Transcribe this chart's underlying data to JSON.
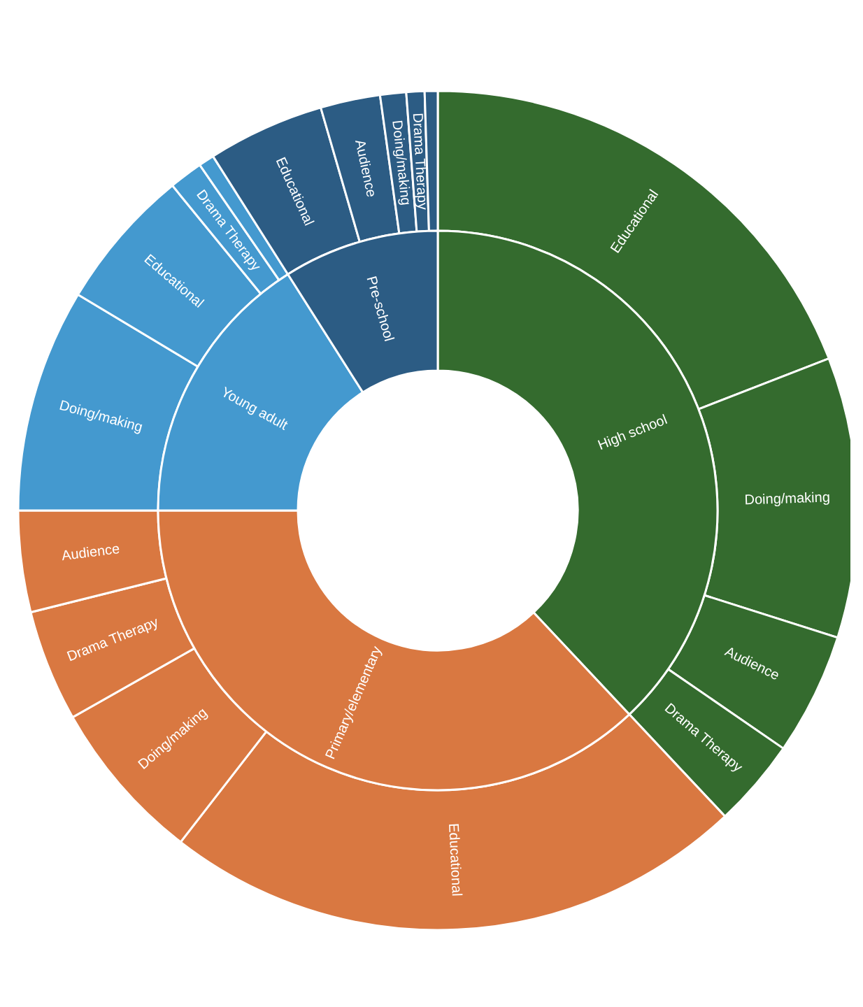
{
  "chart_data": [
    {
      "type": "donut",
      "legend": false,
      "categories": [
        "High school",
        "Primary/elementary",
        "Young adult",
        "Pre-school"
      ],
      "colors": [
        "#346b2e",
        "#d97841",
        "#4499cf",
        "#2c5c84"
      ],
      "values": [
        38,
        37,
        16,
        9
      ]
    },
    {
      "type": "donut",
      "legend": false,
      "categories": [
        "Educational",
        "Doing/making",
        "Audience",
        "Drama Therapy",
        "Educational",
        "Doing/making",
        "Drama Therapy",
        "Audience",
        "Doing/making",
        "Educational",
        "Drama Therapy",
        null,
        "Educational",
        "Audience",
        "Doing/making",
        "Drama Therapy",
        null
      ],
      "colors": [
        "#346b2e",
        "#346b2e",
        "#346b2e",
        "#346b2e",
        "#d97841",
        "#d97841",
        "#d97841",
        "#d97841",
        "#4499cf",
        "#4499cf",
        "#4499cf",
        "#4499cf",
        "#2c5c84",
        "#2c5c84",
        "#2c5c84",
        "#2c5c84",
        "#2c5c84"
      ],
      "values": [
        19.1,
        10.8,
        4.7,
        3.4,
        22.5,
        6.3,
        4.3,
        3.9,
        8.6,
        5.5,
        1.3,
        0.6,
        4.5,
        2.3,
        1.0,
        0.7,
        0.5
      ]
    }
  ]
}
